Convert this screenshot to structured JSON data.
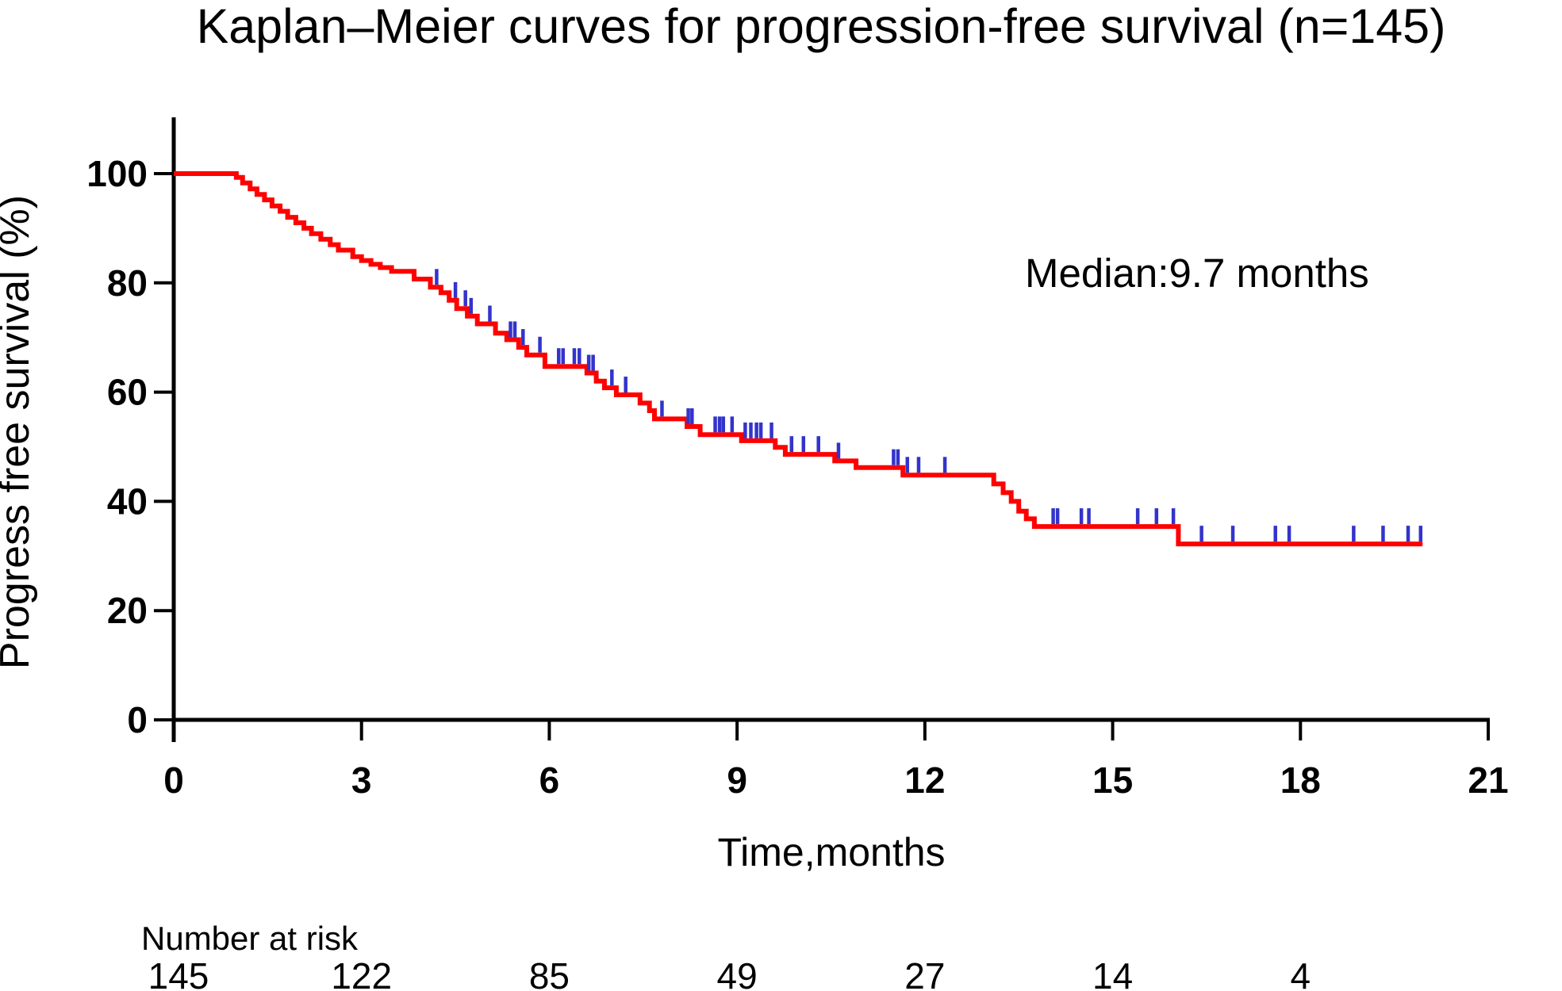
{
  "title": "Kaplan–Meier curves for progression-free survival (n=145)",
  "annotation": "Median:9.7 months",
  "chart_data": {
    "type": "line",
    "subtype": "kaplan-meier-step",
    "title": "Kaplan–Meier curves for progression-free survival (n=145)",
    "n": 145,
    "median_months": 9.7,
    "xlabel": "Time,months",
    "ylabel": "Progress free survival (%)",
    "xlim": [
      0,
      21
    ],
    "ylim": [
      0,
      100
    ],
    "x_ticks": [
      0,
      3,
      6,
      9,
      12,
      15,
      18,
      21
    ],
    "y_ticks": [
      0,
      20,
      40,
      60,
      80,
      100
    ],
    "grid": false,
    "legend": "none",
    "curve_color": "#ff0000",
    "censor_color": "#3333cc",
    "axis_color": "#000000",
    "end_time": 19.95,
    "steps": [
      [
        0,
        100
      ],
      [
        1.0,
        99.3
      ],
      [
        1.1,
        98.3
      ],
      [
        1.22,
        97.2
      ],
      [
        1.33,
        96.2
      ],
      [
        1.45,
        95.2
      ],
      [
        1.57,
        94.1
      ],
      [
        1.7,
        93.1
      ],
      [
        1.82,
        92.0
      ],
      [
        1.95,
        91.0
      ],
      [
        2.08,
        90.0
      ],
      [
        2.2,
        89.0
      ],
      [
        2.35,
        88.0
      ],
      [
        2.5,
        87.0
      ],
      [
        2.63,
        86.0
      ],
      [
        2.86,
        84.8
      ],
      [
        3.0,
        84.1
      ],
      [
        3.15,
        83.4
      ],
      [
        3.3,
        82.8
      ],
      [
        3.48,
        82.1
      ],
      [
        3.84,
        80.7
      ],
      [
        4.1,
        79.2
      ],
      [
        4.27,
        78.2
      ],
      [
        4.4,
        76.8
      ],
      [
        4.52,
        75.3
      ],
      [
        4.69,
        73.9
      ],
      [
        4.85,
        72.5
      ],
      [
        5.14,
        70.8
      ],
      [
        5.32,
        69.6
      ],
      [
        5.51,
        68.2
      ],
      [
        5.64,
        66.8
      ],
      [
        5.93,
        64.7
      ],
      [
        6.6,
        63.5
      ],
      [
        6.75,
        62.0
      ],
      [
        6.88,
        60.8
      ],
      [
        7.07,
        59.5
      ],
      [
        7.45,
        58.0
      ],
      [
        7.6,
        56.6
      ],
      [
        7.68,
        55.1
      ],
      [
        8.2,
        53.7
      ],
      [
        8.41,
        52.2
      ],
      [
        9.07,
        51.1
      ],
      [
        9.61,
        49.9
      ],
      [
        9.77,
        48.6
      ],
      [
        10.56,
        47.4
      ],
      [
        10.9,
        46.2
      ],
      [
        11.65,
        44.8
      ],
      [
        13.1,
        43.2
      ],
      [
        13.25,
        41.6
      ],
      [
        13.38,
        40.0
      ],
      [
        13.5,
        38.2
      ],
      [
        13.62,
        36.8
      ],
      [
        13.75,
        35.4
      ],
      [
        16.05,
        32.2
      ]
    ],
    "censor_times": [
      4.2,
      4.5,
      4.66,
      4.75,
      5.05,
      5.38,
      5.45,
      5.58,
      5.85,
      6.15,
      6.22,
      6.4,
      6.48,
      6.63,
      6.7,
      7.0,
      7.22,
      7.8,
      8.22,
      8.28,
      8.65,
      8.72,
      8.78,
      8.92,
      9.13,
      9.22,
      9.31,
      9.38,
      9.55,
      9.87,
      10.06,
      10.3,
      10.62,
      11.5,
      11.57,
      11.72,
      11.9,
      12.32,
      14.05,
      14.12,
      14.5,
      14.62,
      15.4,
      15.7,
      15.97,
      16.42,
      16.92,
      17.6,
      17.82,
      18.85,
      19.32,
      19.72,
      19.92
    ],
    "number_at_risk": {
      "label": "Number at risk",
      "times": [
        0,
        3,
        6,
        9,
        12,
        15,
        18
      ],
      "values": [
        145,
        122,
        85,
        49,
        27,
        14,
        4
      ]
    }
  }
}
